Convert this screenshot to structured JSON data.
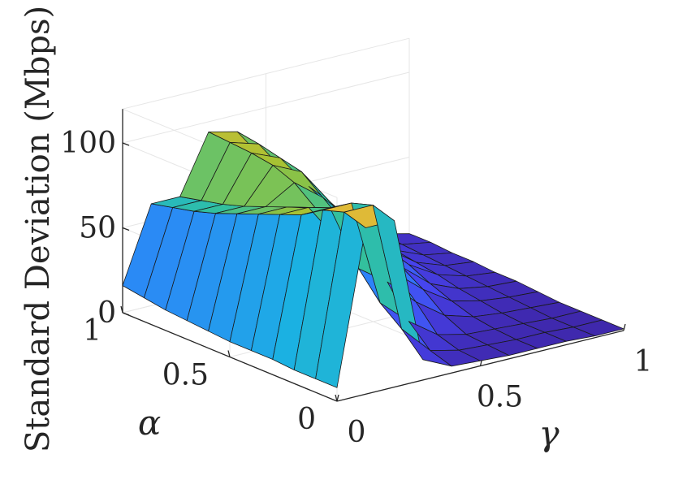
{
  "chart_data": {
    "type": "surface",
    "title": "",
    "zlabel": "Standard Deviation (Mbps)",
    "xlabel": "γ",
    "ylabel": "α",
    "xlim": [
      0,
      1
    ],
    "ylim": [
      0,
      1
    ],
    "zlim": [
      0,
      120
    ],
    "x_ticks": [
      {
        "value": 0,
        "label": "0"
      },
      {
        "value": 0.5,
        "label": "0.5"
      },
      {
        "value": 1,
        "label": "1"
      }
    ],
    "y_ticks": [
      {
        "value": 0,
        "label": "0"
      },
      {
        "value": 0.5,
        "label": "0.5"
      },
      {
        "value": 1,
        "label": "1"
      }
    ],
    "z_ticks": [
      {
        "value": 0,
        "label": "0"
      },
      {
        "value": 50,
        "label": "50"
      },
      {
        "value": 100,
        "label": "100"
      }
    ],
    "grid": true,
    "colormap": "parula",
    "colormap_stops": [
      "#3e26a8",
      "#4743ef",
      "#2f7efb",
      "#1bb2e2",
      "#33c09c",
      "#a0c332",
      "#ecb838",
      "#f9fb15"
    ],
    "x_values": [
      0,
      0.1,
      0.2,
      0.3,
      0.4,
      0.5,
      0.6,
      0.7,
      0.8,
      0.9,
      1.0
    ],
    "y_values": [
      0,
      0.1,
      0.2,
      0.3,
      0.4,
      0.5,
      0.6,
      0.7,
      0.8,
      0.9,
      1.0
    ],
    "z_matrix": [
      [
        8,
        98,
        98,
        12,
        4,
        3,
        2,
        2,
        2,
        1,
        1
      ],
      [
        8,
        102,
        102,
        25,
        8,
        4,
        3,
        2,
        2,
        1,
        1
      ],
      [
        8,
        98,
        98,
        35,
        20,
        8,
        4,
        3,
        2,
        1,
        1
      ],
      [
        9,
        90,
        90,
        50,
        38,
        22,
        10,
        5,
        3,
        2,
        1
      ],
      [
        9,
        85,
        85,
        62,
        50,
        34,
        20,
        9,
        5,
        3,
        2
      ],
      [
        9,
        80,
        80,
        75,
        62,
        44,
        28,
        14,
        7,
        4,
        3
      ],
      [
        10,
        75,
        75,
        85,
        72,
        54,
        36,
        20,
        10,
        5,
        3
      ],
      [
        11,
        70,
        70,
        90,
        82,
        60,
        40,
        24,
        12,
        6,
        4
      ],
      [
        12,
        66,
        66,
        92,
        85,
        64,
        44,
        26,
        14,
        7,
        4
      ],
      [
        14,
        63,
        63,
        93,
        88,
        66,
        46,
        28,
        15,
        8,
        5
      ],
      [
        16,
        60,
        60,
        94,
        90,
        68,
        48,
        30,
        16,
        9,
        5
      ]
    ]
  }
}
